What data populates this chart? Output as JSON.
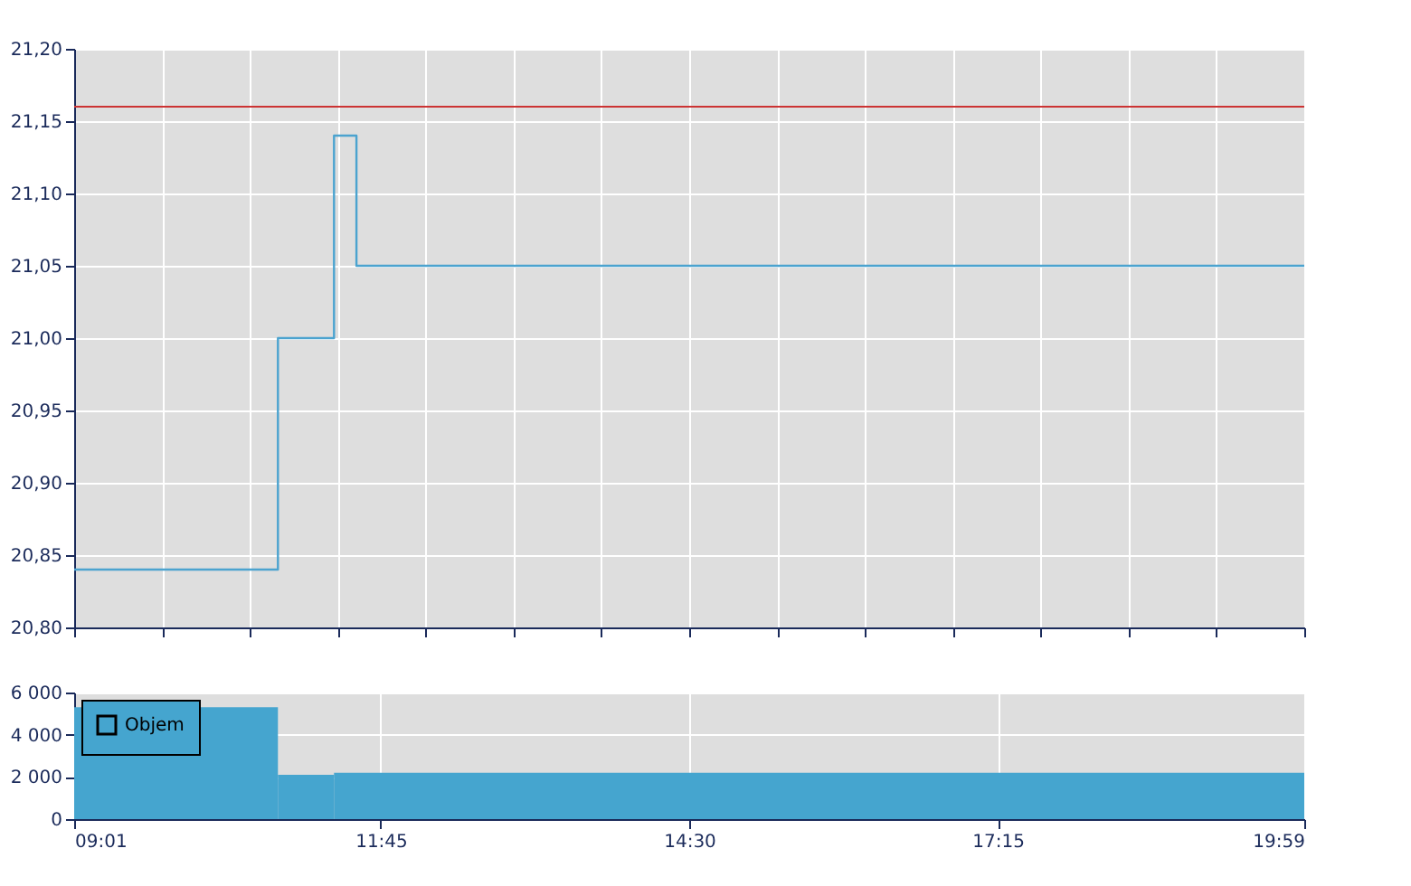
{
  "chart_data": [
    {
      "type": "step",
      "x": [
        9.0167,
        10.8333,
        11.3333,
        11.5333,
        19.9833
      ],
      "series": [
        {
          "color": "#4ba3cf",
          "values": [
            20.84,
            21.0,
            21.14,
            21.05,
            21.05
          ]
        }
      ],
      "xlim": [
        9.0167,
        19.9833
      ],
      "xticks": [
        {
          "value": 9.0167,
          "label": null
        },
        {
          "value": 9.8,
          "label": null
        },
        {
          "value": 10.5833,
          "label": null
        },
        {
          "value": 11.3667,
          "label": null
        },
        {
          "value": 12.15,
          "label": null
        },
        {
          "value": 12.9333,
          "label": null
        },
        {
          "value": 13.7167,
          "label": null
        },
        {
          "value": 14.5,
          "label": null
        },
        {
          "value": 15.2833,
          "label": null
        },
        {
          "value": 16.0667,
          "label": null
        },
        {
          "value": 16.85,
          "label": null
        },
        {
          "value": 17.6333,
          "label": null
        },
        {
          "value": 18.4167,
          "label": null
        },
        {
          "value": 19.2,
          "label": null
        },
        {
          "value": 19.9833,
          "label": null
        }
      ],
      "ylim": [
        20.8,
        21.2
      ],
      "yticks": [
        {
          "value": 20.8,
          "label": "20,80"
        },
        {
          "value": 20.85,
          "label": "20,85"
        },
        {
          "value": 20.9,
          "label": "20,90"
        },
        {
          "value": 20.95,
          "label": "20,95"
        },
        {
          "value": 21.0,
          "label": "21,00"
        },
        {
          "value": 21.05,
          "label": "21,05"
        },
        {
          "value": 21.1,
          "label": "21,10"
        },
        {
          "value": 21.15,
          "label": "21,15"
        },
        {
          "value": 21.2,
          "label": "21,20"
        }
      ],
      "ref_lines": [
        {
          "axis": "y",
          "value": 21.16,
          "color": "#cc3333"
        }
      ],
      "grid": true,
      "tick_labels": "y",
      "legend": false
    },
    {
      "type": "area",
      "x": [
        9.0167,
        10.8333,
        11.3333,
        19.9833
      ],
      "series": [
        {
          "name": "Objem",
          "color": "#45a5cf",
          "values": [
            5300,
            2100,
            2200,
            2200
          ]
        }
      ],
      "xlim": [
        9.0167,
        19.9833
      ],
      "xticks": [
        {
          "value": 9.0167,
          "label": "09:01"
        },
        {
          "value": 11.75,
          "label": "11:45"
        },
        {
          "value": 14.5,
          "label": "14:30"
        },
        {
          "value": 17.25,
          "label": "17:15"
        },
        {
          "value": 19.9833,
          "label": "19:59"
        }
      ],
      "ylim": [
        0,
        6000
      ],
      "yticks": [
        {
          "value": 0,
          "label": "0"
        },
        {
          "value": 2000,
          "label": "2 000"
        },
        {
          "value": 4000,
          "label": "4 000"
        },
        {
          "value": 6000,
          "label": "6 000"
        }
      ],
      "grid": true,
      "legend": "top left"
    }
  ]
}
